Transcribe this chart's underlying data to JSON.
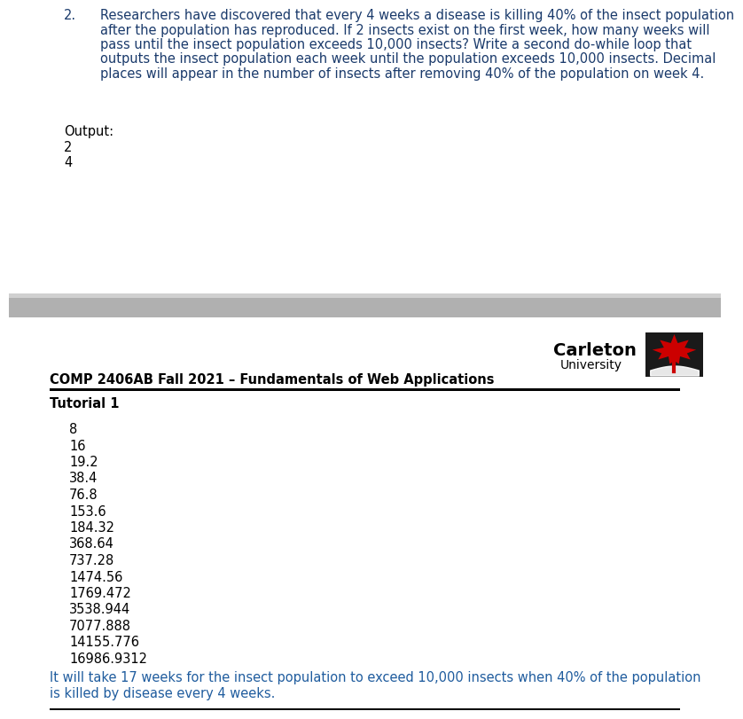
{
  "question_number": "2.",
  "question_text_lines": [
    "Researchers have discovered that every 4 weeks a disease is killing 40% of the insect population",
    "after the population has reproduced. If 2 insects exist on the first week, how many weeks will",
    "pass until the insect population exceeds 10,000 insects? Write a second do-while loop that",
    "outputs the insect population each week until the population exceeds 10,000 insects. Decimal",
    "places will appear in the number of insects after removing 40% of the population on week 4."
  ],
  "output_label": "Output:",
  "output_first_values": [
    "2",
    "4"
  ],
  "header_course": "COMP 2406AB Fall 2021 – Fundamentals of Web Applications",
  "header_title": "Tutorial 1",
  "population_values": [
    "8",
    "16",
    "19.2",
    "38.4",
    "76.8",
    "153.6",
    "184.32",
    "368.64",
    "737.28",
    "1474.56",
    "1769.472",
    "3538.944",
    "7077.888",
    "14155.776",
    "16986.9312"
  ],
  "conclusion_text_lines": [
    "It will take 17 weeks for the insect population to exceed 10,000 insects when 40% of the population",
    "is killed by disease every 4 weeks."
  ],
  "bg_color": "#ffffff",
  "text_black": "#000000",
  "text_blue_dark": "#1a3a6b",
  "text_blue_conclusion": "#1f5c9e",
  "sep_color_light": "#d0d0d0",
  "sep_color_dark": "#b0b0b0",
  "carleton_bold_color": "#000000",
  "carleton_univ_color": "#000000",
  "leaf_red": "#cc0000",
  "leaf_dark": "#1a1a1a",
  "font_size_main": 10.5,
  "font_size_carleton": 14,
  "font_size_univ": 10
}
